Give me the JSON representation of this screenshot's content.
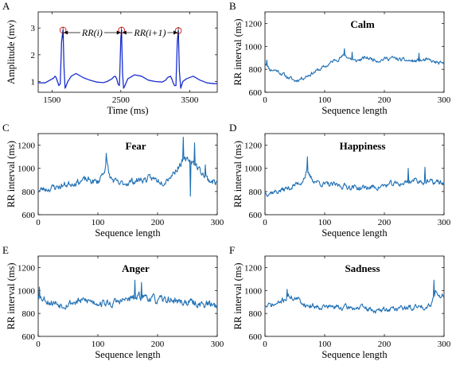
{
  "chart_data": [
    {
      "id": "A",
      "type": "line",
      "panel_label": "A",
      "title": "",
      "xlabel": "Time (ms)",
      "ylabel": "Amplitude (mv)",
      "xlim": [
        1300,
        3900
      ],
      "ylim": [
        0.6,
        3.6
      ],
      "xticks": [
        1500,
        2500,
        3500
      ],
      "yticks": [
        1,
        2,
        3
      ],
      "series": [
        {
          "x": [
            1300,
            1400,
            1470,
            1520,
            1545,
            1560,
            1580,
            1600,
            1620,
            1640,
            1660,
            1675,
            1690,
            1700,
            1730,
            1780,
            1850,
            1950,
            2050,
            2150,
            2250,
            2300,
            2370,
            2400,
            2420,
            2440,
            2460,
            2480,
            2500,
            2510,
            2525,
            2540,
            2560,
            2600,
            2700,
            2800,
            2900,
            3000,
            3100,
            3150,
            3180,
            3220,
            3240,
            3260,
            3280,
            3300,
            3320,
            3335,
            3350,
            3370,
            3400,
            3450,
            3550,
            3650,
            3750,
            3850,
            3900
          ],
          "y": [
            0.95,
            0.95,
            1.05,
            1.12,
            1.2,
            1.15,
            1.0,
            0.85,
            0.92,
            2.5,
            2.92,
            1.5,
            0.75,
            0.8,
            1.0,
            1.2,
            1.3,
            1.15,
            1.05,
            0.98,
            0.96,
            1.0,
            1.1,
            1.18,
            1.2,
            1.1,
            0.9,
            0.85,
            2.6,
            2.92,
            1.3,
            0.75,
            0.85,
            1.1,
            1.25,
            1.2,
            1.05,
            1.0,
            0.98,
            1.05,
            1.15,
            1.2,
            1.1,
            0.95,
            0.85,
            0.85,
            2.5,
            2.9,
            1.4,
            0.75,
            1.0,
            1.1,
            1.2,
            1.05,
            0.95,
            0.92,
            0.92
          ]
        }
      ],
      "r_peaks": [
        {
          "x": 1660,
          "y": 2.92
        },
        {
          "x": 2510,
          "y": 2.92
        },
        {
          "x": 3335,
          "y": 2.9
        }
      ],
      "annotations": [
        {
          "math": [
            "RR(",
            "i",
            ")"
          ]
        },
        {
          "math": [
            "RR(",
            "i",
            "+1)"
          ]
        }
      ]
    },
    {
      "id": "B",
      "type": "line",
      "panel_label": "B",
      "title": "Calm",
      "xlabel": "Sequence length",
      "ylabel": "RR interval (ms)",
      "xlim": [
        0,
        300
      ],
      "ylim": [
        600,
        1300
      ],
      "xticks": [
        0,
        100,
        200,
        300
      ],
      "yticks": [
        600,
        800,
        1000,
        1200
      ],
      "base": [
        [
          0,
          860
        ],
        [
          8,
          800
        ],
        [
          20,
          790
        ],
        [
          35,
          740
        ],
        [
          50,
          700
        ],
        [
          65,
          730
        ],
        [
          80,
          770
        ],
        [
          100,
          820
        ],
        [
          120,
          890
        ],
        [
          135,
          920
        ],
        [
          150,
          870
        ],
        [
          170,
          900
        ],
        [
          190,
          880
        ],
        [
          210,
          900
        ],
        [
          230,
          880
        ],
        [
          250,
          870
        ],
        [
          270,
          880
        ],
        [
          285,
          860
        ],
        [
          300,
          840
        ]
      ],
      "noise": 18,
      "seed": 11,
      "spikes": [
        [
          3,
          880
        ],
        [
          133,
          980
        ],
        [
          146,
          950
        ],
        [
          258,
          940
        ]
      ]
    },
    {
      "id": "C",
      "type": "line",
      "panel_label": "C",
      "title": "Fear",
      "xlabel": "Sequence length",
      "ylabel": "RR interval (ms)",
      "xlim": [
        0,
        300
      ],
      "ylim": [
        600,
        1300
      ],
      "xticks": [
        0,
        100,
        200,
        300
      ],
      "yticks": [
        600,
        800,
        1000,
        1200
      ],
      "base": [
        [
          0,
          810
        ],
        [
          20,
          830
        ],
        [
          40,
          850
        ],
        [
          60,
          880
        ],
        [
          80,
          900
        ],
        [
          100,
          880
        ],
        [
          110,
          980
        ],
        [
          115,
          1050
        ],
        [
          120,
          920
        ],
        [
          135,
          860
        ],
        [
          150,
          880
        ],
        [
          170,
          900
        ],
        [
          190,
          910
        ],
        [
          210,
          890
        ],
        [
          225,
          950
        ],
        [
          240,
          1050
        ],
        [
          255,
          1080
        ],
        [
          265,
          1020
        ],
        [
          275,
          960
        ],
        [
          285,
          900
        ],
        [
          300,
          880
        ]
      ],
      "noise": 30,
      "seed": 23,
      "spikes": [
        [
          114,
          1130
        ],
        [
          243,
          1270
        ],
        [
          262,
          1220
        ],
        [
          255,
          760
        ],
        [
          280,
          1030
        ]
      ]
    },
    {
      "id": "D",
      "type": "line",
      "panel_label": "D",
      "title": "Happiness",
      "xlabel": "Sequence length",
      "ylabel": "RR interval (ms)",
      "xlim": [
        0,
        300
      ],
      "ylim": [
        600,
        1300
      ],
      "xticks": [
        0,
        100,
        200,
        300
      ],
      "yticks": [
        600,
        800,
        1000,
        1200
      ],
      "base": [
        [
          0,
          790
        ],
        [
          20,
          800
        ],
        [
          40,
          830
        ],
        [
          60,
          880
        ],
        [
          70,
          960
        ],
        [
          80,
          900
        ],
        [
          100,
          860
        ],
        [
          130,
          850
        ],
        [
          160,
          830
        ],
        [
          190,
          840
        ],
        [
          210,
          860
        ],
        [
          230,
          870
        ],
        [
          250,
          900
        ],
        [
          270,
          880
        ],
        [
          290,
          880
        ],
        [
          300,
          870
        ]
      ],
      "noise": 25,
      "seed": 37,
      "spikes": [
        [
          71,
          1100
        ],
        [
          240,
          1000
        ],
        [
          268,
          1010
        ]
      ]
    },
    {
      "id": "E",
      "type": "line",
      "panel_label": "E",
      "title": "Anger",
      "xlabel": "Sequence length",
      "ylabel": "RR interval (ms)",
      "xlim": [
        0,
        300
      ],
      "ylim": [
        600,
        1300
      ],
      "xticks": [
        0,
        100,
        200,
        300
      ],
      "yticks": [
        600,
        800,
        1000,
        1200
      ],
      "base": [
        [
          0,
          960
        ],
        [
          20,
          900
        ],
        [
          40,
          880
        ],
        [
          60,
          900
        ],
        [
          80,
          910
        ],
        [
          100,
          900
        ],
        [
          120,
          880
        ],
        [
          140,
          910
        ],
        [
          160,
          930
        ],
        [
          180,
          950
        ],
        [
          200,
          910
        ],
        [
          220,
          920
        ],
        [
          240,
          900
        ],
        [
          260,
          890
        ],
        [
          280,
          880
        ],
        [
          300,
          870
        ]
      ],
      "noise": 35,
      "seed": 53,
      "spikes": [
        [
          2,
          1030
        ],
        [
          162,
          1090
        ],
        [
          173,
          1070
        ]
      ]
    },
    {
      "id": "F",
      "type": "line",
      "panel_label": "F",
      "title": "Sadness",
      "xlabel": "Sequence length",
      "ylabel": "RR interval (ms)",
      "xlim": [
        0,
        300
      ],
      "ylim": [
        600,
        1300
      ],
      "xticks": [
        0,
        100,
        200,
        300
      ],
      "yticks": [
        600,
        800,
        1000,
        1200
      ],
      "base": [
        [
          0,
          860
        ],
        [
          20,
          880
        ],
        [
          40,
          950
        ],
        [
          55,
          920
        ],
        [
          70,
          870
        ],
        [
          100,
          860
        ],
        [
          130,
          850
        ],
        [
          160,
          850
        ],
        [
          190,
          820
        ],
        [
          210,
          840
        ],
        [
          240,
          850
        ],
        [
          270,
          860
        ],
        [
          280,
          900
        ],
        [
          285,
          1000
        ],
        [
          290,
          960
        ],
        [
          300,
          950
        ]
      ],
      "noise": 25,
      "seed": 71,
      "spikes": [
        [
          37,
          1010
        ],
        [
          283,
          1090
        ]
      ]
    }
  ]
}
